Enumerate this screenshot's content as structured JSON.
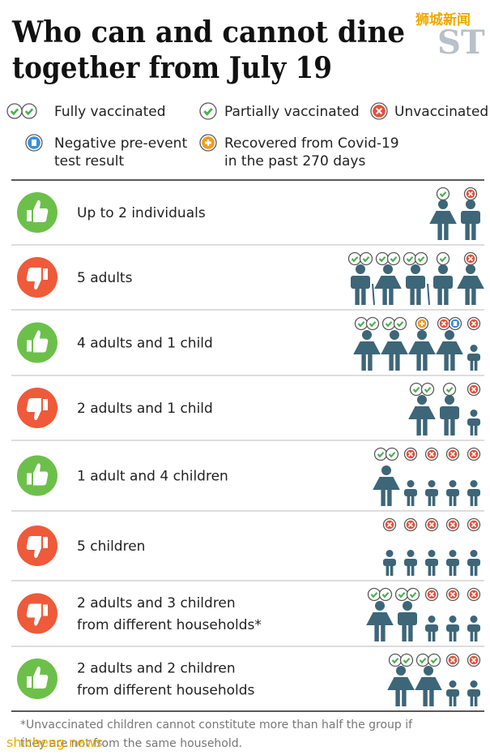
{
  "header": {
    "title_lines": [
      "Who can and cannot dine",
      "together from July 19"
    ],
    "logo": "ST",
    "watermark": "狮城新闻"
  },
  "legend": [
    {
      "lines": [
        "Fully vaccinated"
      ]
    },
    {
      "lines": [
        "Partially vaccinated"
      ]
    },
    {
      "lines": [
        "Unvaccinated"
      ]
    },
    {
      "lines": [
        "Negative pre-event",
        "test result"
      ]
    },
    {
      "lines": [
        "Recovered from Covid-19",
        "in the past 270 days"
      ]
    }
  ],
  "rows": [
    {
      "lines": [
        "Up to 2 individuals"
      ],
      "allowed": true
    },
    {
      "lines": [
        "5 adults"
      ],
      "allowed": false
    },
    {
      "lines": [
        "4 adults and 1 child"
      ],
      "allowed": true
    },
    {
      "lines": [
        "2 adults and 1 child"
      ],
      "allowed": false
    },
    {
      "lines": [
        "1 adult and 4 children"
      ],
      "allowed": true
    },
    {
      "lines": [
        "5 children"
      ],
      "allowed": false
    },
    {
      "lines": [
        "2 adults and 3 children",
        "from different households*"
      ],
      "allowed": false
    },
    {
      "lines": [
        "2 adults and 2 children",
        "from different households"
      ],
      "allowed": true
    }
  ],
  "footnote": [
    "*Unvaccinated children cannot constitute more than half the group if",
    "they are not from the same household."
  ],
  "watermark_bottom": "shicheng.news"
}
